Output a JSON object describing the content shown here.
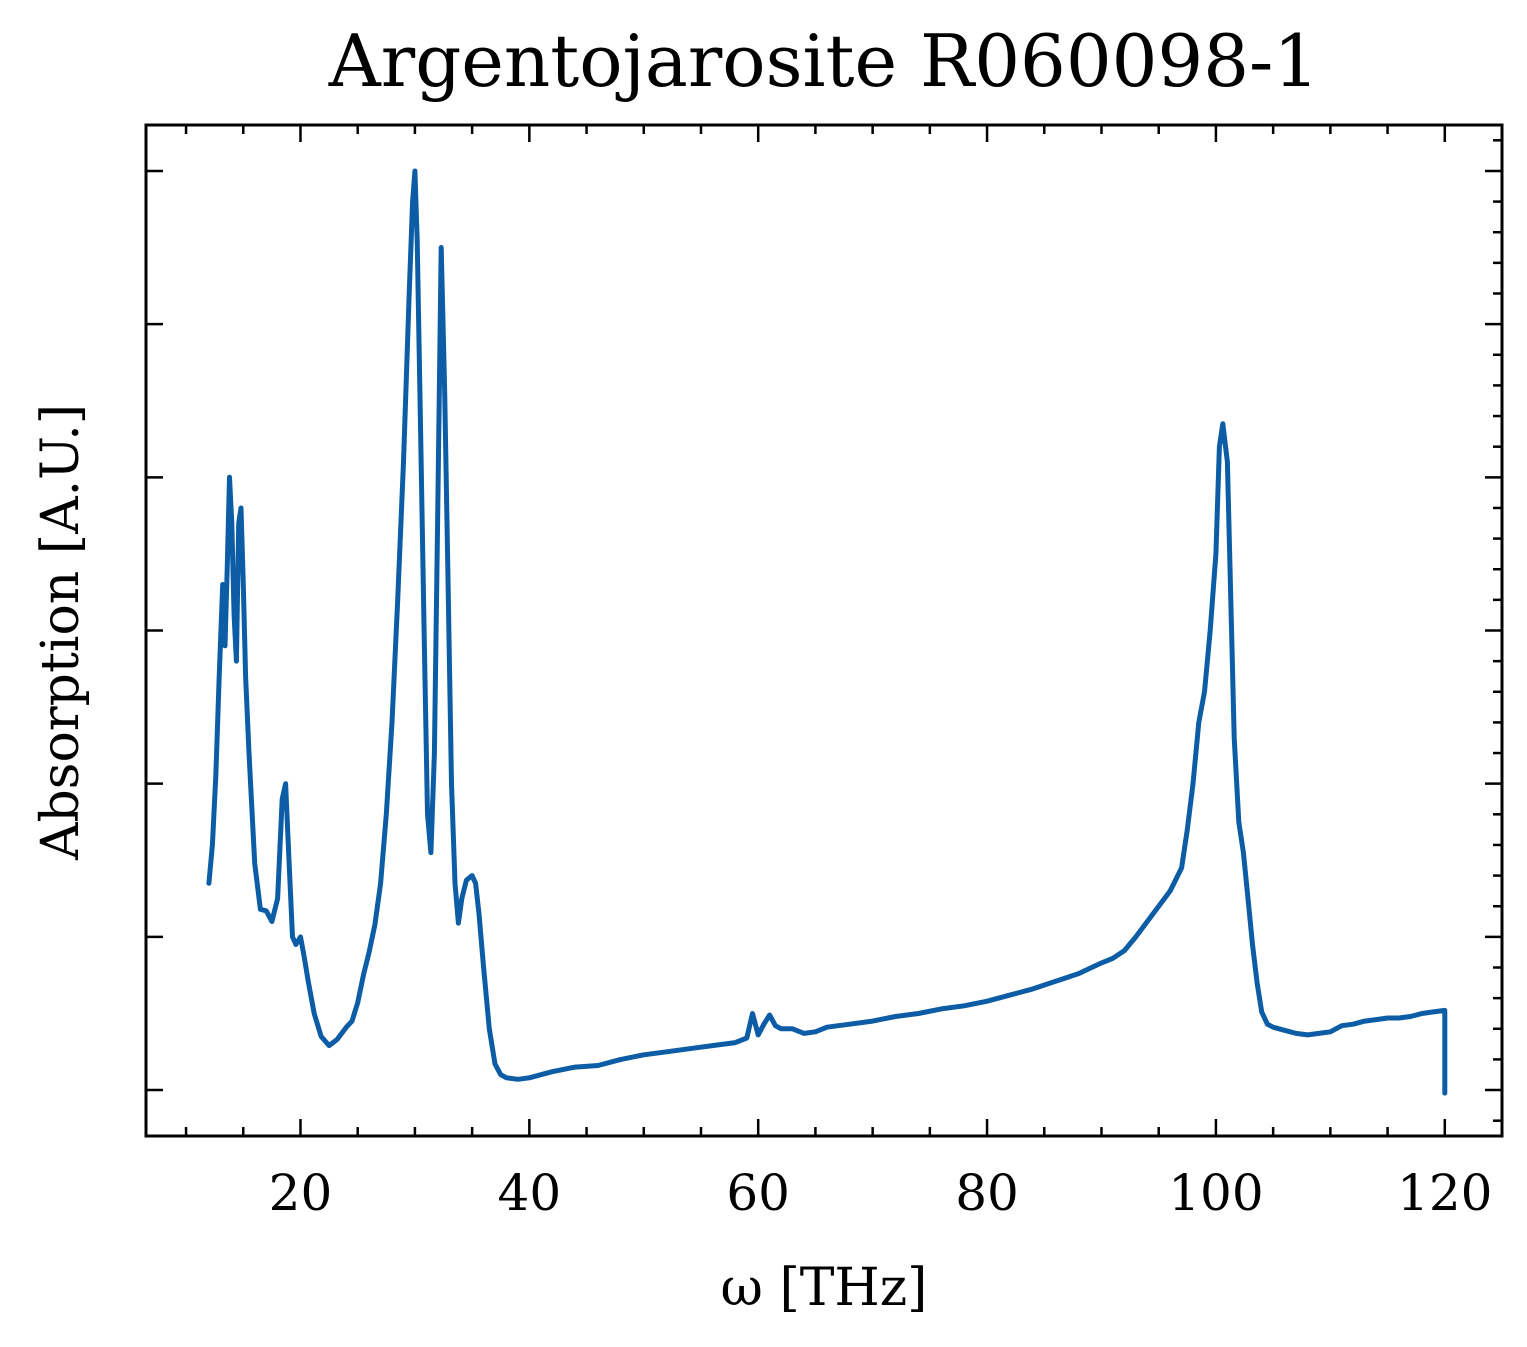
{
  "chart_data": {
    "type": "line",
    "title": "Argentojarosite R060098-1",
    "xlabel": "ω [THz]",
    "ylabel": "Absorption [A.U.]",
    "xlim": [
      6.5,
      125
    ],
    "ylim": [
      -0.03,
      0.63
    ],
    "x_ticks": [
      20,
      40,
      60,
      80,
      100,
      120
    ],
    "x_tick_labels": [
      "20",
      "40",
      "60",
      "80",
      "100",
      "120"
    ],
    "y_ticks": [
      0.0,
      0.1,
      0.2,
      0.3,
      0.4,
      0.5,
      0.6
    ],
    "y_tick_labels_shown": false,
    "grid": false,
    "legend": "none",
    "line_color": "#0C5DA5",
    "series": [
      {
        "x": [
          12.0,
          12.3,
          12.6,
          12.9,
          13.2,
          13.4,
          13.6,
          13.8,
          14.0,
          14.2,
          14.4,
          14.6,
          14.8,
          15.0,
          15.2,
          15.5,
          16.0,
          16.5,
          17.0,
          17.5,
          18.0,
          18.4,
          18.7,
          19.0,
          19.3,
          19.6,
          20.0,
          20.3,
          20.7,
          21.2,
          21.8,
          22.5,
          23.2,
          24.0,
          24.5,
          25.0,
          25.5,
          26.0,
          26.5,
          27.0,
          27.5,
          28.0,
          28.5,
          29.0,
          29.5,
          29.8,
          30.0,
          30.2,
          30.5,
          30.8,
          31.1,
          31.4,
          31.7,
          32.0,
          32.3,
          32.6,
          32.9,
          33.2,
          33.5,
          33.8,
          34.1,
          34.5,
          35.0,
          35.3,
          35.6,
          36.0,
          36.5,
          37.0,
          37.5,
          38.0,
          39.0,
          40.0,
          42.0,
          44.0,
          46.0,
          48.0,
          50.0,
          52.0,
          54.0,
          56.0,
          58.0,
          59.0,
          59.5,
          60.0,
          60.5,
          61.0,
          61.5,
          62.0,
          63.0,
          64.0,
          65.0,
          66.0,
          68.0,
          70.0,
          72.0,
          74.0,
          76.0,
          78.0,
          80.0,
          82.0,
          84.0,
          86.0,
          88.0,
          90.0,
          91.0,
          92.0,
          93.0,
          94.0,
          95.0,
          96.0,
          97.0,
          97.5,
          98.0,
          98.5,
          99.0,
          99.5,
          100.0,
          100.3,
          100.6,
          101.0,
          101.3,
          101.6,
          102.0,
          102.4,
          102.8,
          103.2,
          103.6,
          104.0,
          104.5,
          105.0,
          106.0,
          107.0,
          108.0,
          109.0,
          110.0,
          111.0,
          112.0,
          113.0,
          114.0,
          115.0,
          116.0,
          117.0,
          118.0,
          119.0,
          120.0,
          120.0
        ],
        "y": [
          0.135,
          0.16,
          0.205,
          0.27,
          0.33,
          0.29,
          0.34,
          0.4,
          0.37,
          0.31,
          0.28,
          0.37,
          0.38,
          0.33,
          0.27,
          0.22,
          0.148,
          0.118,
          0.117,
          0.11,
          0.125,
          0.19,
          0.2,
          0.15,
          0.1,
          0.095,
          0.1,
          0.088,
          0.07,
          0.05,
          0.035,
          0.029,
          0.033,
          0.041,
          0.045,
          0.057,
          0.075,
          0.09,
          0.108,
          0.135,
          0.18,
          0.24,
          0.32,
          0.41,
          0.52,
          0.58,
          0.6,
          0.555,
          0.43,
          0.3,
          0.18,
          0.155,
          0.22,
          0.38,
          0.55,
          0.455,
          0.33,
          0.2,
          0.135,
          0.109,
          0.125,
          0.137,
          0.14,
          0.135,
          0.115,
          0.08,
          0.04,
          0.017,
          0.01,
          0.008,
          0.007,
          0.008,
          0.012,
          0.015,
          0.016,
          0.02,
          0.023,
          0.025,
          0.027,
          0.029,
          0.031,
          0.034,
          0.05,
          0.036,
          0.043,
          0.049,
          0.042,
          0.04,
          0.04,
          0.037,
          0.038,
          0.041,
          0.043,
          0.045,
          0.048,
          0.05,
          0.053,
          0.055,
          0.058,
          0.062,
          0.066,
          0.071,
          0.076,
          0.083,
          0.086,
          0.091,
          0.1,
          0.11,
          0.12,
          0.13,
          0.145,
          0.17,
          0.2,
          0.24,
          0.26,
          0.3,
          0.35,
          0.42,
          0.435,
          0.41,
          0.32,
          0.23,
          0.175,
          0.155,
          0.125,
          0.095,
          0.07,
          0.051,
          0.043,
          0.041,
          0.039,
          0.037,
          0.036,
          0.037,
          0.038,
          0.042,
          0.043,
          0.045,
          0.046,
          0.047,
          0.047,
          0.048,
          0.05,
          0.051,
          0.052,
          -0.002
        ]
      }
    ]
  }
}
